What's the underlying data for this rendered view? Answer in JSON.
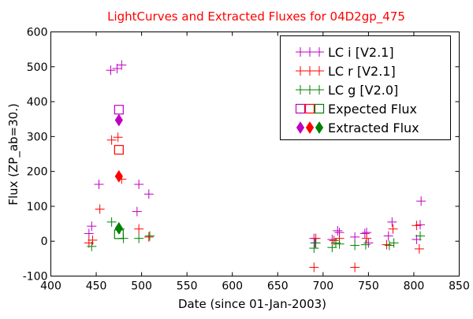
{
  "chart_data": {
    "type": "scatter",
    "title": "LightCurves and Extracted Fluxes for 04D2gp_475",
    "title_color": "#ff0000",
    "xlabel": "Date (since 01-Jan-2003)",
    "ylabel": "Flux (ZP_ab=30.)",
    "xlim": [
      400,
      850
    ],
    "ylim": [
      -100,
      600
    ],
    "xticks": [
      "400",
      "450",
      "500",
      "550",
      "600",
      "650",
      "700",
      "750",
      "800",
      "850"
    ],
    "yticks": [
      "-100",
      "0",
      "100",
      "200",
      "300",
      "400",
      "500",
      "600"
    ],
    "grid": false,
    "legend_position": "upper right",
    "series": [
      {
        "name": "LC i [V2.1]",
        "marker": "plus",
        "color": "#bf00bf",
        "points": [
          [
            442,
            22
          ],
          [
            445,
            43
          ],
          [
            453,
            163
          ],
          [
            466,
            490
          ],
          [
            473,
            495
          ],
          [
            478,
            505
          ],
          [
            495,
            85
          ],
          [
            497,
            163
          ],
          [
            508,
            135
          ],
          [
            690,
            8
          ],
          [
            691,
            -5
          ],
          [
            710,
            5
          ],
          [
            716,
            30
          ],
          [
            718,
            25
          ],
          [
            735,
            12
          ],
          [
            746,
            22
          ],
          [
            748,
            25
          ],
          [
            750,
            -5
          ],
          [
            772,
            15
          ],
          [
            776,
            55
          ],
          [
            803,
            5
          ],
          [
            807,
            47
          ],
          [
            808,
            115
          ]
        ]
      },
      {
        "name": "LC r [V2.1]",
        "marker": "plus",
        "color": "#ff0000",
        "points": [
          [
            442,
            -5
          ],
          [
            446,
            3
          ],
          [
            454,
            92
          ],
          [
            467,
            290
          ],
          [
            474,
            298
          ],
          [
            478,
            178
          ],
          [
            497,
            35
          ],
          [
            508,
            12
          ],
          [
            690,
            -75
          ],
          [
            692,
            8
          ],
          [
            712,
            2
          ],
          [
            718,
            8
          ],
          [
            735,
            -75
          ],
          [
            748,
            8
          ],
          [
            770,
            -10
          ],
          [
            777,
            35
          ],
          [
            803,
            45
          ],
          [
            806,
            -22
          ]
        ]
      },
      {
        "name": "LC g [V2.0]",
        "marker": "plus",
        "color": "#008000",
        "points": [
          [
            445,
            -15
          ],
          [
            467,
            55
          ],
          [
            476,
            35
          ],
          [
            480,
            8
          ],
          [
            497,
            8
          ],
          [
            509,
            15
          ],
          [
            690,
            -20
          ],
          [
            692,
            -5
          ],
          [
            710,
            -18
          ],
          [
            714,
            -5
          ],
          [
            718,
            -8
          ],
          [
            735,
            -12
          ],
          [
            747,
            -10
          ],
          [
            773,
            -12
          ],
          [
            778,
            -5
          ],
          [
            807,
            15
          ]
        ]
      },
      {
        "name": "Expected Flux",
        "marker": "square",
        "color": "#bf00bf",
        "edge_colors": [
          "#bf00bf",
          "#ff0000",
          "#008000"
        ],
        "points": [
          [
            475,
            377
          ],
          [
            475,
            262
          ],
          [
            475,
            20
          ]
        ]
      },
      {
        "name": "Extracted Flux",
        "marker": "diamond",
        "color": "#bf00bf",
        "fill_colors": [
          "#bf00bf",
          "#ff0000",
          "#008000"
        ],
        "points": [
          [
            475,
            347
          ],
          [
            475,
            186
          ],
          [
            475,
            37
          ]
        ]
      }
    ],
    "legend": [
      {
        "label": "LC i [V2.1]",
        "marker": "plus",
        "colors": [
          "#bf00bf",
          "#bf00bf",
          "#bf00bf"
        ]
      },
      {
        "label": "LC r [V2.1]",
        "marker": "plus",
        "colors": [
          "#ff0000",
          "#ff0000",
          "#ff0000"
        ]
      },
      {
        "label": "LC g [V2.0]",
        "marker": "plus",
        "colors": [
          "#008000",
          "#008000",
          "#008000"
        ]
      },
      {
        "label": "Expected Flux",
        "marker": "square",
        "colors": [
          "#bf00bf",
          "#ff0000",
          "#008000"
        ]
      },
      {
        "label": "Extracted Flux",
        "marker": "diamond",
        "colors": [
          "#bf00bf",
          "#ff0000",
          "#008000"
        ]
      }
    ]
  }
}
